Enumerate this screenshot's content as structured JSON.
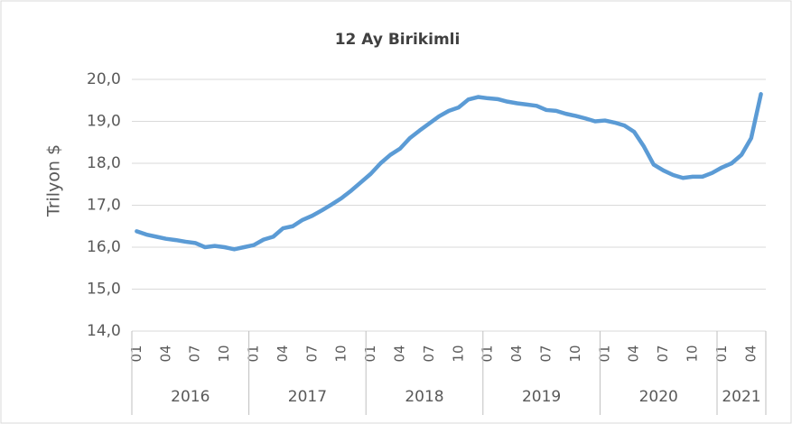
{
  "chart_data": {
    "type": "line",
    "title": "12 Ay Birikimli",
    "y_label": "Trilyon $",
    "categories": [
      "01",
      null,
      null,
      "04",
      null,
      null,
      "07",
      null,
      null,
      "10",
      null,
      null,
      "01",
      null,
      null,
      "04",
      null,
      null,
      "07",
      null,
      null,
      "10",
      null,
      null,
      "01",
      null,
      null,
      "04",
      null,
      null,
      "07",
      null,
      null,
      "10",
      null,
      null,
      "01",
      null,
      null,
      "04",
      null,
      null,
      "07",
      null,
      null,
      "10",
      null,
      null,
      "01",
      null,
      null,
      "04",
      null,
      null,
      "07",
      null,
      null,
      "10",
      null,
      null,
      "01",
      null,
      null,
      "04",
      null
    ],
    "years": [
      "2016",
      "2017",
      "2018",
      "2019",
      "2020",
      "2021"
    ],
    "series": [
      {
        "name": "12 Ay Birikimli",
        "color": "#5b9bd5",
        "values": [
          16.38,
          16.3,
          16.25,
          16.2,
          16.17,
          16.13,
          16.1,
          16.0,
          16.03,
          16.0,
          15.95,
          16.0,
          16.05,
          16.18,
          16.25,
          16.45,
          16.5,
          16.65,
          16.75,
          16.88,
          17.02,
          17.17,
          17.35,
          17.55,
          17.75,
          18.0,
          18.2,
          18.35,
          18.6,
          18.78,
          18.95,
          19.12,
          19.25,
          19.33,
          19.52,
          19.58,
          19.55,
          19.53,
          19.47,
          19.43,
          19.4,
          19.37,
          19.27,
          19.25,
          19.18,
          19.13,
          19.07,
          19.0,
          19.02,
          18.97,
          18.9,
          18.75,
          18.4,
          17.97,
          17.83,
          17.72,
          17.65,
          17.68,
          17.68,
          17.77,
          17.9,
          18.0,
          18.2,
          18.6,
          19.65
        ]
      }
    ],
    "ylim": [
      14,
      20
    ],
    "yticks": [
      {
        "value": 14,
        "label": "14,0"
      },
      {
        "value": 15,
        "label": "15,0"
      },
      {
        "value": 16,
        "label": "16,0"
      },
      {
        "value": 17,
        "label": "17,0"
      },
      {
        "value": 18,
        "label": "18,0"
      },
      {
        "value": 19,
        "label": "19,0"
      },
      {
        "value": 20,
        "label": "20,0"
      }
    ],
    "grid": true
  }
}
